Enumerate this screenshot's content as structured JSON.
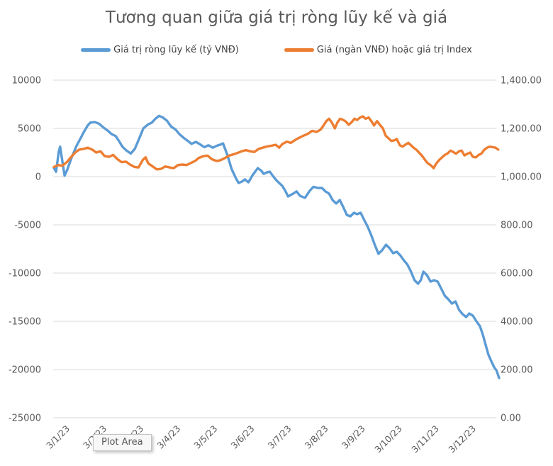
{
  "tooltip": {
    "text": "Plot Area"
  },
  "chart_data": {
    "type": "line",
    "title": "Tương quan giữa giá trị ròng lũy kế và giá",
    "xlabel": "",
    "ylabel": "",
    "grid": true,
    "legend_position": "top",
    "x_unit": "percent_of_time_range",
    "x_labels": [
      "3/1/23",
      "3/2/23",
      "3/3/23",
      "3/4/23",
      "3/5/23",
      "3/6/23",
      "3/7/23",
      "3/8/23",
      "3/9/23",
      "3/10/23",
      "3/11/23",
      "3/12/23"
    ],
    "left_axis": {
      "min": -25000,
      "max": 10000,
      "step": 5000,
      "ticks": [
        "10000",
        "5000",
        "0",
        "-5000",
        "-10000",
        "-15000",
        "-20000",
        "-25000"
      ]
    },
    "right_axis": {
      "min": 0,
      "max": 1400,
      "step": 200,
      "ticks": [
        "1,400.00",
        "1,200.00",
        "1,000.00",
        "800.00",
        "600.00",
        "400.00",
        "200.00",
        "0.00"
      ]
    },
    "colors": {
      "grid": "#d9d9d9",
      "axis_text": "#595959",
      "title": "#595959"
    },
    "series": [
      {
        "name": "Giá trị ròng lũy kế (tỷ VNĐ)",
        "axis": "left",
        "color": "#5B9BD5",
        "points": [
          [
            0,
            900
          ],
          [
            0.5,
            500
          ],
          [
            1.1,
            2600
          ],
          [
            1.4,
            3100
          ],
          [
            2.4,
            100
          ],
          [
            3,
            700
          ],
          [
            4,
            2000
          ],
          [
            5.1,
            3200
          ],
          [
            5.9,
            3900
          ],
          [
            6.7,
            4600
          ],
          [
            7.6,
            5300
          ],
          [
            8.2,
            5600
          ],
          [
            9.2,
            5650
          ],
          [
            10.1,
            5500
          ],
          [
            11.1,
            5100
          ],
          [
            12,
            4800
          ],
          [
            13,
            4400
          ],
          [
            13.9,
            4200
          ],
          [
            14.6,
            3700
          ],
          [
            15.4,
            3100
          ],
          [
            16.3,
            2700
          ],
          [
            17.3,
            2400
          ],
          [
            18.2,
            2900
          ],
          [
            19.2,
            4000
          ],
          [
            20.1,
            5000
          ],
          [
            21.1,
            5400
          ],
          [
            22,
            5600
          ],
          [
            22.8,
            6000
          ],
          [
            23.6,
            6300
          ],
          [
            24.4,
            6150
          ],
          [
            25.4,
            5800
          ],
          [
            26.3,
            5200
          ],
          [
            27.3,
            4900
          ],
          [
            28.2,
            4400
          ],
          [
            29.2,
            4000
          ],
          [
            30.1,
            3700
          ],
          [
            30.9,
            3400
          ],
          [
            31.9,
            3600
          ],
          [
            32.8,
            3350
          ],
          [
            33.8,
            3050
          ],
          [
            34.7,
            3250
          ],
          [
            35.7,
            3000
          ],
          [
            36.6,
            3200
          ],
          [
            37.6,
            3350
          ],
          [
            38,
            3450
          ],
          [
            39,
            2200
          ],
          [
            39.9,
            800
          ],
          [
            40.9,
            -200
          ],
          [
            41.5,
            -660
          ],
          [
            42.3,
            -500
          ],
          [
            42.9,
            -290
          ],
          [
            43.7,
            -590
          ],
          [
            44.7,
            200
          ],
          [
            45.8,
            880
          ],
          [
            46.6,
            600
          ],
          [
            47.1,
            290
          ],
          [
            47.9,
            450
          ],
          [
            48.5,
            510
          ],
          [
            49.3,
            0
          ],
          [
            50.1,
            -440
          ],
          [
            51.3,
            -960
          ],
          [
            52,
            -1500
          ],
          [
            52.6,
            -2060
          ],
          [
            53.6,
            -1800
          ],
          [
            54.5,
            -1540
          ],
          [
            55.3,
            -2000
          ],
          [
            56.4,
            -2200
          ],
          [
            57.4,
            -1500
          ],
          [
            58.3,
            -1060
          ],
          [
            59.3,
            -1180
          ],
          [
            60.2,
            -1180
          ],
          [
            61,
            -1540
          ],
          [
            61.8,
            -1760
          ],
          [
            62.6,
            -2430
          ],
          [
            63.4,
            -2790
          ],
          [
            64.2,
            -2430
          ],
          [
            65,
            -3160
          ],
          [
            65.8,
            -3970
          ],
          [
            66.6,
            -4120
          ],
          [
            67.4,
            -3750
          ],
          [
            68.1,
            -3890
          ],
          [
            68.9,
            -3750
          ],
          [
            69.7,
            -4490
          ],
          [
            70.5,
            -5200
          ],
          [
            71.3,
            -6100
          ],
          [
            72.1,
            -7100
          ],
          [
            72.9,
            -8000
          ],
          [
            73.7,
            -7650
          ],
          [
            74.6,
            -7060
          ],
          [
            75.4,
            -7430
          ],
          [
            76.2,
            -7940
          ],
          [
            77,
            -7790
          ],
          [
            77.8,
            -8160
          ],
          [
            78.6,
            -8680
          ],
          [
            79.4,
            -9120
          ],
          [
            80.2,
            -9850
          ],
          [
            81,
            -10740
          ],
          [
            81.8,
            -11100
          ],
          [
            82.4,
            -10740
          ],
          [
            83,
            -9850
          ],
          [
            83.8,
            -10220
          ],
          [
            84.6,
            -10880
          ],
          [
            85.4,
            -10740
          ],
          [
            86.2,
            -10880
          ],
          [
            87,
            -11620
          ],
          [
            87.8,
            -12350
          ],
          [
            88.6,
            -12720
          ],
          [
            89.4,
            -13160
          ],
          [
            90.2,
            -12940
          ],
          [
            91,
            -13820
          ],
          [
            91.8,
            -14260
          ],
          [
            92.6,
            -14560
          ],
          [
            93.3,
            -14190
          ],
          [
            94.1,
            -14410
          ],
          [
            94.9,
            -15000
          ],
          [
            95.7,
            -15510
          ],
          [
            96.4,
            -16470
          ],
          [
            97,
            -17500
          ],
          [
            97.6,
            -18460
          ],
          [
            98.3,
            -19190
          ],
          [
            98.9,
            -19780
          ],
          [
            99.4,
            -20070
          ],
          [
            100,
            -20880
          ]
        ]
      },
      {
        "name": "Giá (ngàn VNĐ) hoặc giá trị Index",
        "axis": "right",
        "color": "#ED7D31",
        "points": [
          [
            0,
            1040
          ],
          [
            1,
            1048
          ],
          [
            1.9,
            1045
          ],
          [
            2.9,
            1060
          ],
          [
            3.8,
            1080
          ],
          [
            4.8,
            1100
          ],
          [
            5.7,
            1112
          ],
          [
            6.7,
            1115
          ],
          [
            7.6,
            1120
          ],
          [
            8.6,
            1112
          ],
          [
            9.5,
            1100
          ],
          [
            10.5,
            1105
          ],
          [
            11.4,
            1085
          ],
          [
            12.4,
            1082
          ],
          [
            13.3,
            1090
          ],
          [
            14.3,
            1072
          ],
          [
            15.2,
            1060
          ],
          [
            16.2,
            1062
          ],
          [
            17.1,
            1050
          ],
          [
            18.1,
            1040
          ],
          [
            19,
            1038
          ],
          [
            20,
            1070
          ],
          [
            20.6,
            1080
          ],
          [
            21.2,
            1055
          ],
          [
            22.2,
            1042
          ],
          [
            23.1,
            1030
          ],
          [
            24.1,
            1032
          ],
          [
            25,
            1042
          ],
          [
            26,
            1038
          ],
          [
            26.9,
            1035
          ],
          [
            27.9,
            1048
          ],
          [
            28.8,
            1050
          ],
          [
            29.8,
            1048
          ],
          [
            30.7,
            1056
          ],
          [
            31.7,
            1065
          ],
          [
            32.6,
            1078
          ],
          [
            33.6,
            1085
          ],
          [
            34.5,
            1087
          ],
          [
            35.5,
            1072
          ],
          [
            36.5,
            1065
          ],
          [
            37.4,
            1068
          ],
          [
            38.4,
            1077
          ],
          [
            39.3,
            1087
          ],
          [
            40.3,
            1092
          ],
          [
            41.2,
            1098
          ],
          [
            42.2,
            1105
          ],
          [
            43.1,
            1110
          ],
          [
            44.1,
            1105
          ],
          [
            45,
            1102
          ],
          [
            46,
            1115
          ],
          [
            46.9,
            1120
          ],
          [
            47.9,
            1125
          ],
          [
            48.8,
            1128
          ],
          [
            49.8,
            1132
          ],
          [
            50.6,
            1120
          ],
          [
            51.3,
            1135
          ],
          [
            52.3,
            1145
          ],
          [
            53.2,
            1140
          ],
          [
            54.2,
            1152
          ],
          [
            55.2,
            1162
          ],
          [
            56.1,
            1170
          ],
          [
            57.1,
            1178
          ],
          [
            58,
            1190
          ],
          [
            59,
            1185
          ],
          [
            59.9,
            1195
          ],
          [
            60.5,
            1210
          ],
          [
            61.2,
            1230
          ],
          [
            61.8,
            1240
          ],
          [
            62.4,
            1225
          ],
          [
            63.1,
            1200
          ],
          [
            63.7,
            1225
          ],
          [
            64.3,
            1240
          ],
          [
            65,
            1235
          ],
          [
            65.6,
            1228
          ],
          [
            66.2,
            1215
          ],
          [
            66.9,
            1226
          ],
          [
            67.5,
            1240
          ],
          [
            68.1,
            1235
          ],
          [
            68.8,
            1245
          ],
          [
            69.4,
            1250
          ],
          [
            70,
            1240
          ],
          [
            70.7,
            1245
          ],
          [
            71.3,
            1230
          ],
          [
            71.9,
            1212
          ],
          [
            72.6,
            1230
          ],
          [
            73.2,
            1215
          ],
          [
            73.9,
            1200
          ],
          [
            74.5,
            1170
          ],
          [
            75.1,
            1160
          ],
          [
            75.8,
            1148
          ],
          [
            76.4,
            1150
          ],
          [
            77,
            1156
          ],
          [
            77.7,
            1130
          ],
          [
            78.3,
            1124
          ],
          [
            78.9,
            1132
          ],
          [
            79.6,
            1140
          ],
          [
            80.2,
            1130
          ],
          [
            80.8,
            1120
          ],
          [
            81.5,
            1110
          ],
          [
            82.1,
            1098
          ],
          [
            82.7,
            1086
          ],
          [
            83.4,
            1068
          ],
          [
            84,
            1055
          ],
          [
            84.6,
            1048
          ],
          [
            85.3,
            1035
          ],
          [
            85.9,
            1055
          ],
          [
            86.5,
            1068
          ],
          [
            87.2,
            1080
          ],
          [
            87.8,
            1090
          ],
          [
            88.4,
            1096
          ],
          [
            89.1,
            1108
          ],
          [
            89.7,
            1102
          ],
          [
            90.3,
            1095
          ],
          [
            91,
            1105
          ],
          [
            91.6,
            1108
          ],
          [
            92.2,
            1088
          ],
          [
            92.9,
            1095
          ],
          [
            93.5,
            1100
          ],
          [
            94.1,
            1082
          ],
          [
            94.8,
            1080
          ],
          [
            95.4,
            1090
          ],
          [
            96,
            1095
          ],
          [
            96.7,
            1112
          ],
          [
            97.3,
            1120
          ],
          [
            97.9,
            1124
          ],
          [
            98.6,
            1122
          ],
          [
            99.2,
            1120
          ],
          [
            99.8,
            1112
          ]
        ]
      }
    ]
  }
}
